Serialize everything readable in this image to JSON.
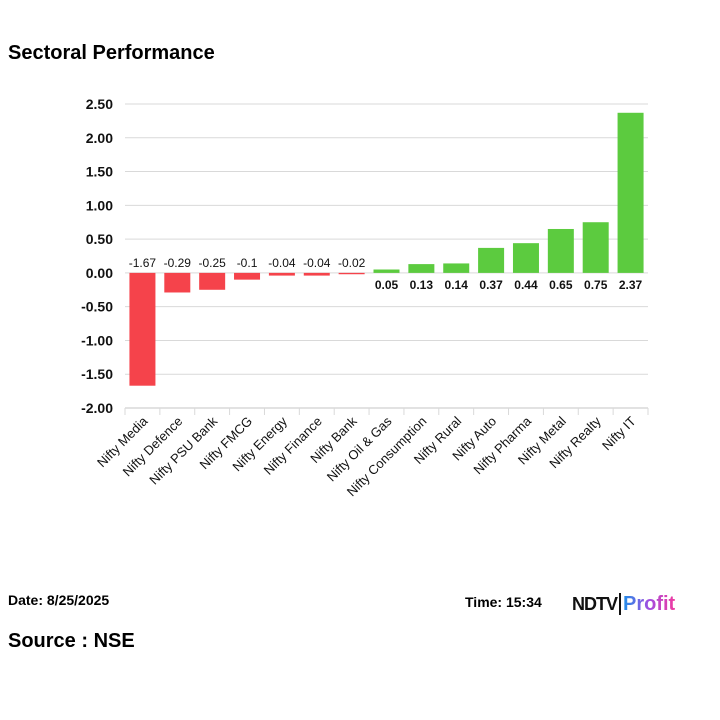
{
  "title": "Sectoral Performance",
  "footer": {
    "date": "Date: 8/25/2025",
    "time": "Time: 15:34",
    "source": "Source : NSE",
    "logo_text": "NDTV Profit"
  },
  "colors": {
    "negative": "#f5434b",
    "positive": "#5ccb3f",
    "grid": "#d9d9d9",
    "axis": "#d9d9d9"
  },
  "chart_data": {
    "type": "bar",
    "title": "Sectoral Performance",
    "xlabel": "",
    "ylabel": "",
    "ylim": [
      -2.0,
      2.5
    ],
    "yticks": [
      "2.50",
      "2.00",
      "1.50",
      "1.00",
      "0.50",
      "0.00",
      "-0.50",
      "-1.00",
      "-1.50",
      "-2.00"
    ],
    "grid": true,
    "categories": [
      "Nifty Media",
      "Nifty Defence",
      "Nifty PSU Bank",
      "Nifty FMCG",
      "Nifty Energy",
      "Nifty Finance",
      "Nifty Bank",
      "Nifty Oil & Gas",
      "Nifty Consumption",
      "Nifty Rural",
      "Nifty Auto",
      "Nifty Pharma",
      "Nifty Metal",
      "Nifty Realty",
      "Nifty IT"
    ],
    "values": [
      -1.67,
      -0.29,
      -0.25,
      -0.1,
      -0.04,
      -0.04,
      -0.02,
      0.05,
      0.13,
      0.14,
      0.37,
      0.44,
      0.65,
      0.75,
      2.37
    ],
    "data_labels": [
      "-1.67",
      "-0.29",
      "-0.25",
      "-0.1",
      "-0.04",
      "-0.04",
      "-0.02",
      "0.05",
      "0.13",
      "0.14",
      "0.37",
      "0.44",
      "0.65",
      "0.75",
      "2.37"
    ]
  }
}
